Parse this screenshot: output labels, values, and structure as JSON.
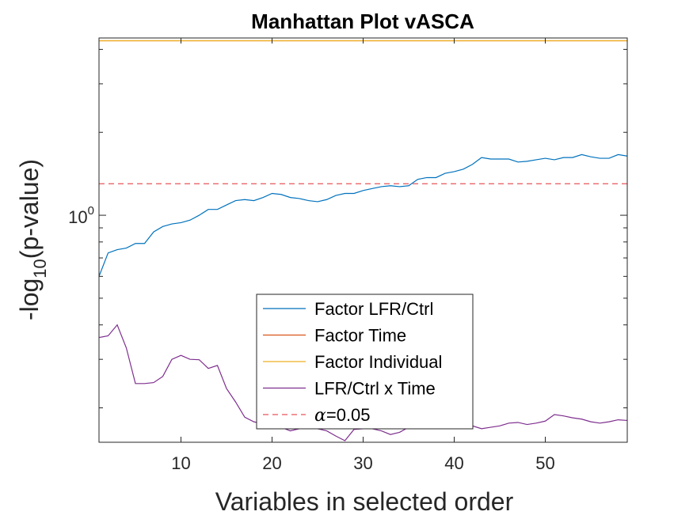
{
  "chart_data": {
    "type": "line",
    "title": "Manhattan Plot vASCA",
    "xlabel": "Variables in selected order",
    "ylabel_main": "-log",
    "ylabel_sub": "10",
    "ylabel_rest": "(p-value)",
    "xlim": [
      1,
      59
    ],
    "ylim": [
      0.15,
      4.4
    ],
    "yscale": "log",
    "x_ticks": [
      10,
      20,
      30,
      40,
      50
    ],
    "y_tick_label_base": "10",
    "y_tick_label_exp": "0",
    "y_tick_value": 1,
    "grid": false,
    "legend_position": "bottom-center",
    "series": [
      {
        "name": "Factor LFR/Ctrl",
        "color": "#0072BD",
        "style": "solid",
        "x": [
          1,
          2,
          3,
          4,
          5,
          6,
          7,
          8,
          9,
          10,
          11,
          12,
          13,
          14,
          15,
          16,
          17,
          18,
          19,
          20,
          21,
          22,
          23,
          24,
          25,
          26,
          27,
          28,
          29,
          30,
          31,
          32,
          33,
          34,
          35,
          36,
          37,
          38,
          39,
          40,
          41,
          42,
          43,
          44,
          45,
          46,
          47,
          48,
          49,
          50,
          51,
          52,
          53,
          54,
          55,
          56,
          57,
          58,
          59
        ],
        "y": [
          0.6,
          0.73,
          0.75,
          0.76,
          0.79,
          0.79,
          0.87,
          0.91,
          0.93,
          0.94,
          0.96,
          1.0,
          1.05,
          1.05,
          1.09,
          1.13,
          1.14,
          1.13,
          1.16,
          1.2,
          1.19,
          1.16,
          1.15,
          1.13,
          1.12,
          1.14,
          1.18,
          1.2,
          1.2,
          1.23,
          1.25,
          1.27,
          1.28,
          1.27,
          1.28,
          1.35,
          1.37,
          1.37,
          1.42,
          1.44,
          1.47,
          1.53,
          1.62,
          1.6,
          1.6,
          1.6,
          1.56,
          1.57,
          1.59,
          1.61,
          1.59,
          1.62,
          1.62,
          1.66,
          1.63,
          1.61,
          1.61,
          1.66,
          1.64
        ]
      },
      {
        "name": "Factor Time",
        "color": "#D95319",
        "style": "solid",
        "x": [
          1,
          59
        ],
        "y": [
          4.3,
          4.3
        ]
      },
      {
        "name": "Factor Individual",
        "color": "#EDB120",
        "style": "solid",
        "x": [
          1,
          59
        ],
        "y": [
          4.3,
          4.3
        ]
      },
      {
        "name": "LFR/Ctrl x Time",
        "color": "#7E2F8E",
        "style": "solid",
        "x": [
          1,
          2,
          3,
          4,
          5,
          6,
          7,
          8,
          9,
          10,
          11,
          12,
          13,
          14,
          15,
          16,
          17,
          18,
          19,
          20,
          21,
          22,
          23,
          24,
          25,
          26,
          27,
          28,
          29,
          30,
          31,
          32,
          33,
          34,
          35,
          36,
          37,
          38,
          39,
          40,
          41,
          42,
          43,
          44,
          45,
          46,
          47,
          48,
          49,
          50,
          51,
          52,
          53,
          54,
          55,
          56,
          57,
          58,
          59
        ],
        "y": [
          0.36,
          0.365,
          0.4,
          0.33,
          0.245,
          0.245,
          0.247,
          0.26,
          0.3,
          0.31,
          0.3,
          0.299,
          0.278,
          0.285,
          0.235,
          0.21,
          0.185,
          0.178,
          0.175,
          0.173,
          0.17,
          0.165,
          0.168,
          0.168,
          0.168,
          0.165,
          0.158,
          0.152,
          0.167,
          0.168,
          0.168,
          0.165,
          0.16,
          0.163,
          0.17,
          0.173,
          0.175,
          0.175,
          0.172,
          0.17,
          0.169,
          0.172,
          0.168,
          0.17,
          0.172,
          0.176,
          0.177,
          0.174,
          0.176,
          0.179,
          0.189,
          0.187,
          0.184,
          0.182,
          0.178,
          0.176,
          0.178,
          0.181,
          0.18
        ]
      },
      {
        "name": "α=0.05",
        "color": "#E8555A",
        "style": "dashed",
        "x": [
          1,
          59
        ],
        "y": [
          1.30103,
          1.30103
        ]
      }
    ],
    "legend_labels": [
      "Factor LFR/Ctrl",
      "Factor Time",
      "Factor Individual",
      "LFR/Ctrl x Time",
      "=0.05"
    ],
    "legend_alpha_symbol": "α"
  }
}
